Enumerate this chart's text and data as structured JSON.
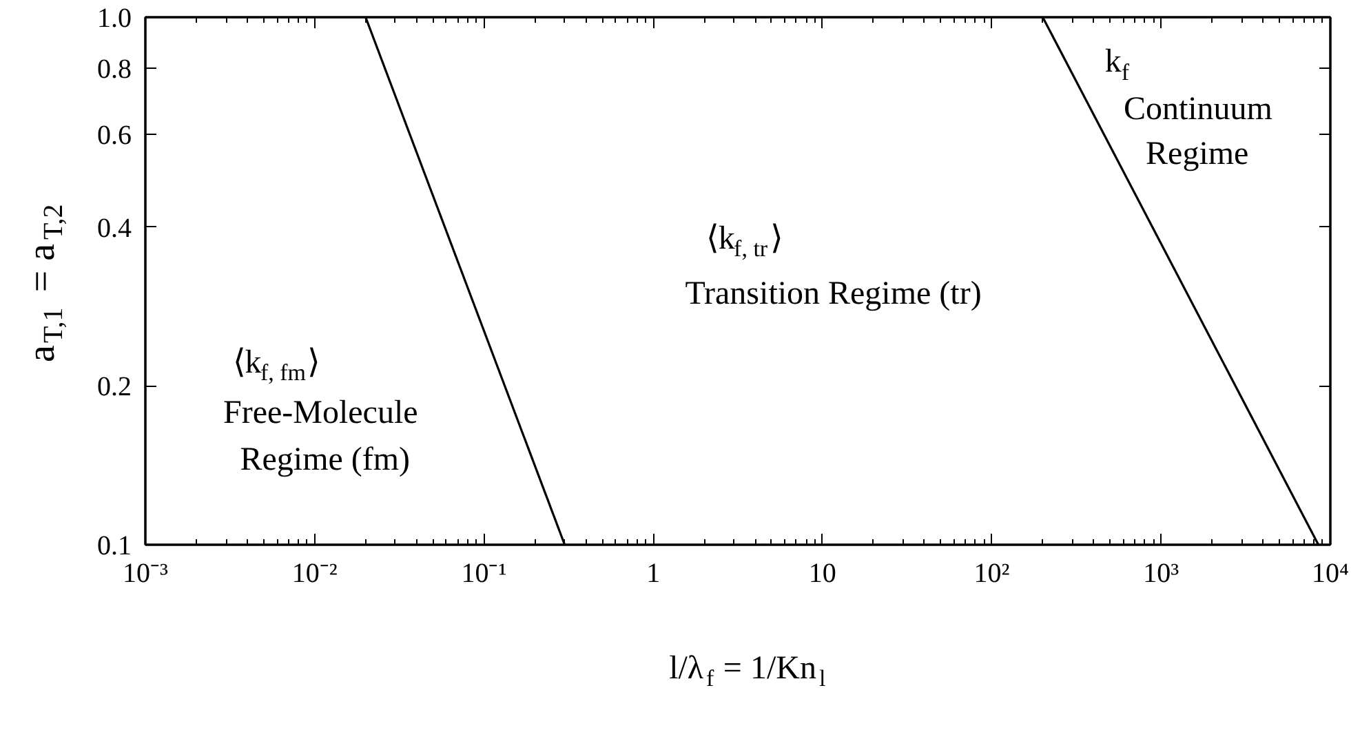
{
  "chart_data": {
    "type": "line",
    "xlabel": "l/λ$_{f}$ = 1/Kn$_{l}$",
    "ylabel": "a$_{T,1}$ = a$_{T,2}$",
    "log": "xy",
    "grid": false,
    "marker": "none",
    "line_style": "solid",
    "xlim": [
      0.001,
      10000
    ],
    "ylim": [
      0.1,
      1.0
    ],
    "xticks": [
      {
        "value": 0.001,
        "label": "10⁻³"
      },
      {
        "value": 0.01,
        "label": "10⁻²"
      },
      {
        "value": 0.1,
        "label": "10⁻¹"
      },
      1,
      10,
      {
        "value": 100,
        "label": "10²"
      },
      {
        "value": 1000,
        "label": "10³"
      },
      {
        "value": 10000,
        "label": "10⁴"
      }
    ],
    "yticks": [
      0.1,
      0.2,
      0.4,
      0.6,
      0.8,
      {
        "value": 1.0,
        "label": "1.0"
      }
    ],
    "series": [
      {
        "color": "#000000",
        "x": [
          0.02,
          0.3
        ],
        "values": [
          1.0,
          0.1
        ]
      },
      {
        "color": "#000000",
        "x": [
          200,
          8500
        ],
        "values": [
          1.0,
          0.1
        ]
      }
    ],
    "annotations": [
      "⟨k$_{f, fm}$⟩",
      "Free-Molecule",
      "Regime (fm)",
      "⟨k$_{f, tr}$⟩",
      "Transition Regime (tr)",
      "k$_{f}$",
      "Continuum",
      "Regime"
    ]
  }
}
